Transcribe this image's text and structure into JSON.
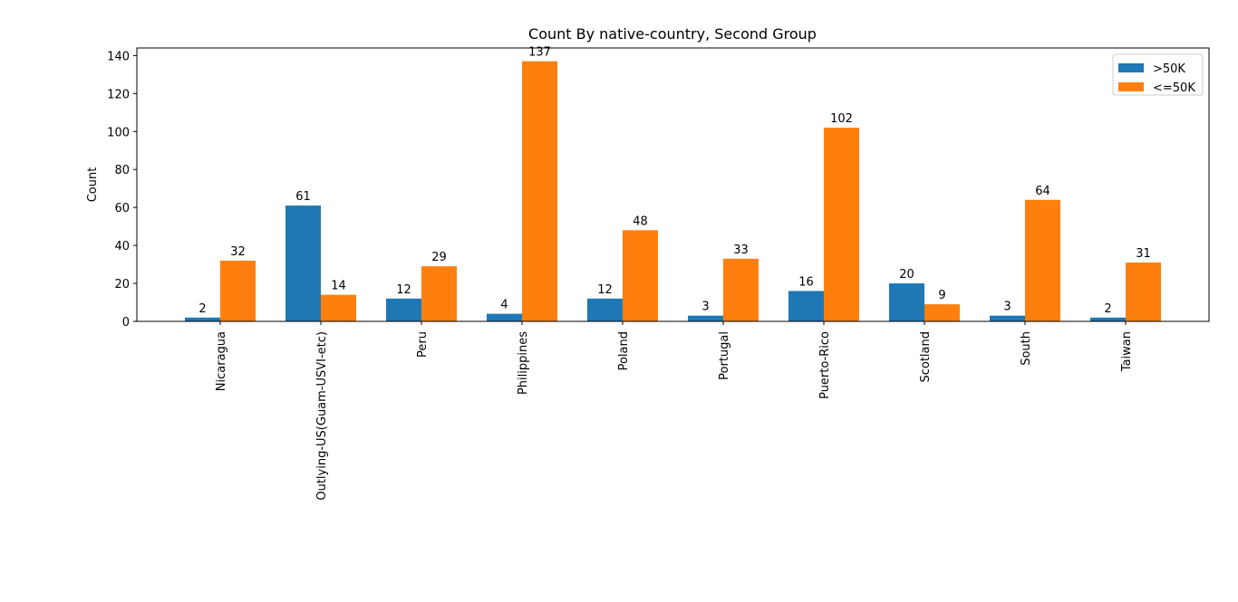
{
  "chart_data": {
    "type": "bar",
    "title": "Count By native-country, Second Group",
    "xlabel": "",
    "ylabel": "Count",
    "ylim": [
      0,
      144
    ],
    "yticks": [
      0,
      20,
      40,
      60,
      80,
      100,
      120,
      140
    ],
    "categories": [
      "Nicaragua",
      "Outlying-US(Guam-USVI-etc)",
      "Peru",
      "Philippines",
      "Poland",
      "Portugal",
      "Puerto-Rico",
      "Scotland",
      "South",
      "Taiwan"
    ],
    "series": [
      {
        "name": ">50K",
        "color": "#1f77b4",
        "values": [
          2,
          61,
          12,
          4,
          12,
          3,
          16,
          20,
          3,
          2
        ]
      },
      {
        "name": "<=50K",
        "color": "#ff7f0e",
        "values": [
          32,
          14,
          29,
          137,
          48,
          33,
          102,
          9,
          64,
          31
        ]
      }
    ],
    "legend_position": "top-right",
    "grid": false
  }
}
